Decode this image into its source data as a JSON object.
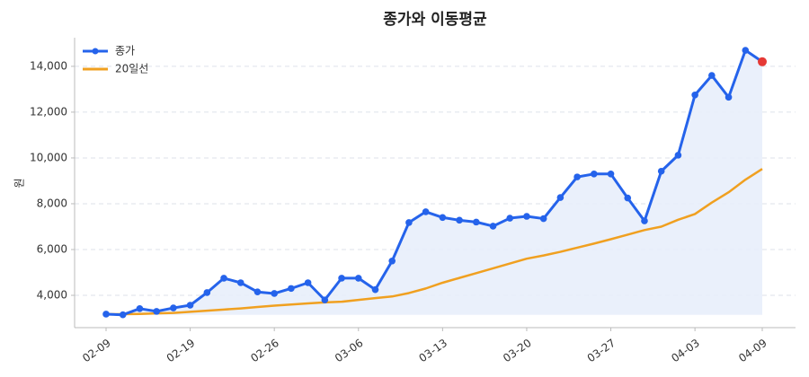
{
  "chart_data": {
    "type": "line",
    "title": "종가와 이동평균",
    "ylabel": "원",
    "x": [
      "02-09",
      "02-10",
      "02-11",
      "02-12",
      "02-13",
      "02-19",
      "02-20",
      "02-23",
      "02-24",
      "02-25",
      "02-26",
      "02-27",
      "03-03",
      "03-04",
      "03-05",
      "03-06",
      "03-09",
      "03-10",
      "03-11",
      "03-12",
      "03-13",
      "03-16",
      "03-17",
      "03-18",
      "03-19",
      "03-20",
      "03-23",
      "03-24",
      "03-25",
      "03-26",
      "03-27",
      "03-30",
      "03-31",
      "04-01",
      "04-02",
      "04-03",
      "04-06",
      "04-07",
      "04-08",
      "04-09"
    ],
    "xticks": [
      "02-09",
      "02-19",
      "02-26",
      "03-06",
      "03-13",
      "03-20",
      "03-27",
      "04-03",
      "04-09"
    ],
    "series": [
      {
        "name": "종가",
        "color": "#2563eb",
        "markers": true,
        "fill": "#e8eefb",
        "values": [
          3180,
          3150,
          3420,
          3300,
          3450,
          3570,
          4120,
          4750,
          4550,
          4150,
          4080,
          4300,
          4550,
          3800,
          4750,
          4750,
          4250,
          5500,
          7180,
          7650,
          7400,
          7280,
          7200,
          7020,
          7370,
          7450,
          7350,
          8270,
          9170,
          9300,
          9300,
          8250,
          7250,
          9420,
          10120,
          12750,
          13600,
          12650,
          14700,
          14200
        ]
      },
      {
        "name": "20일선",
        "color": "#f0a020",
        "markers": false,
        "values": [
          3180,
          3180,
          3190,
          3210,
          3230,
          3280,
          3330,
          3380,
          3430,
          3490,
          3550,
          3600,
          3650,
          3690,
          3720,
          3800,
          3880,
          3950,
          4100,
          4300,
          4550,
          4760,
          4970,
          5180,
          5390,
          5600,
          5740,
          5900,
          6080,
          6260,
          6450,
          6650,
          6850,
          7000,
          7300,
          7550,
          8050,
          8500,
          9050,
          9520
        ]
      }
    ],
    "last_point_color": "#e53935",
    "ylim": [
      2590,
      15250
    ],
    "yticks": [
      {
        "value": 4000,
        "label": "4,000"
      },
      {
        "value": 6000,
        "label": "6,000"
      },
      {
        "value": 8000,
        "label": "8,000"
      },
      {
        "value": 10000,
        "label": "10,000"
      },
      {
        "value": 12000,
        "label": "12,000"
      },
      {
        "value": 14000,
        "label": "14,000"
      }
    ],
    "grid": true,
    "legend": "upper-left"
  }
}
